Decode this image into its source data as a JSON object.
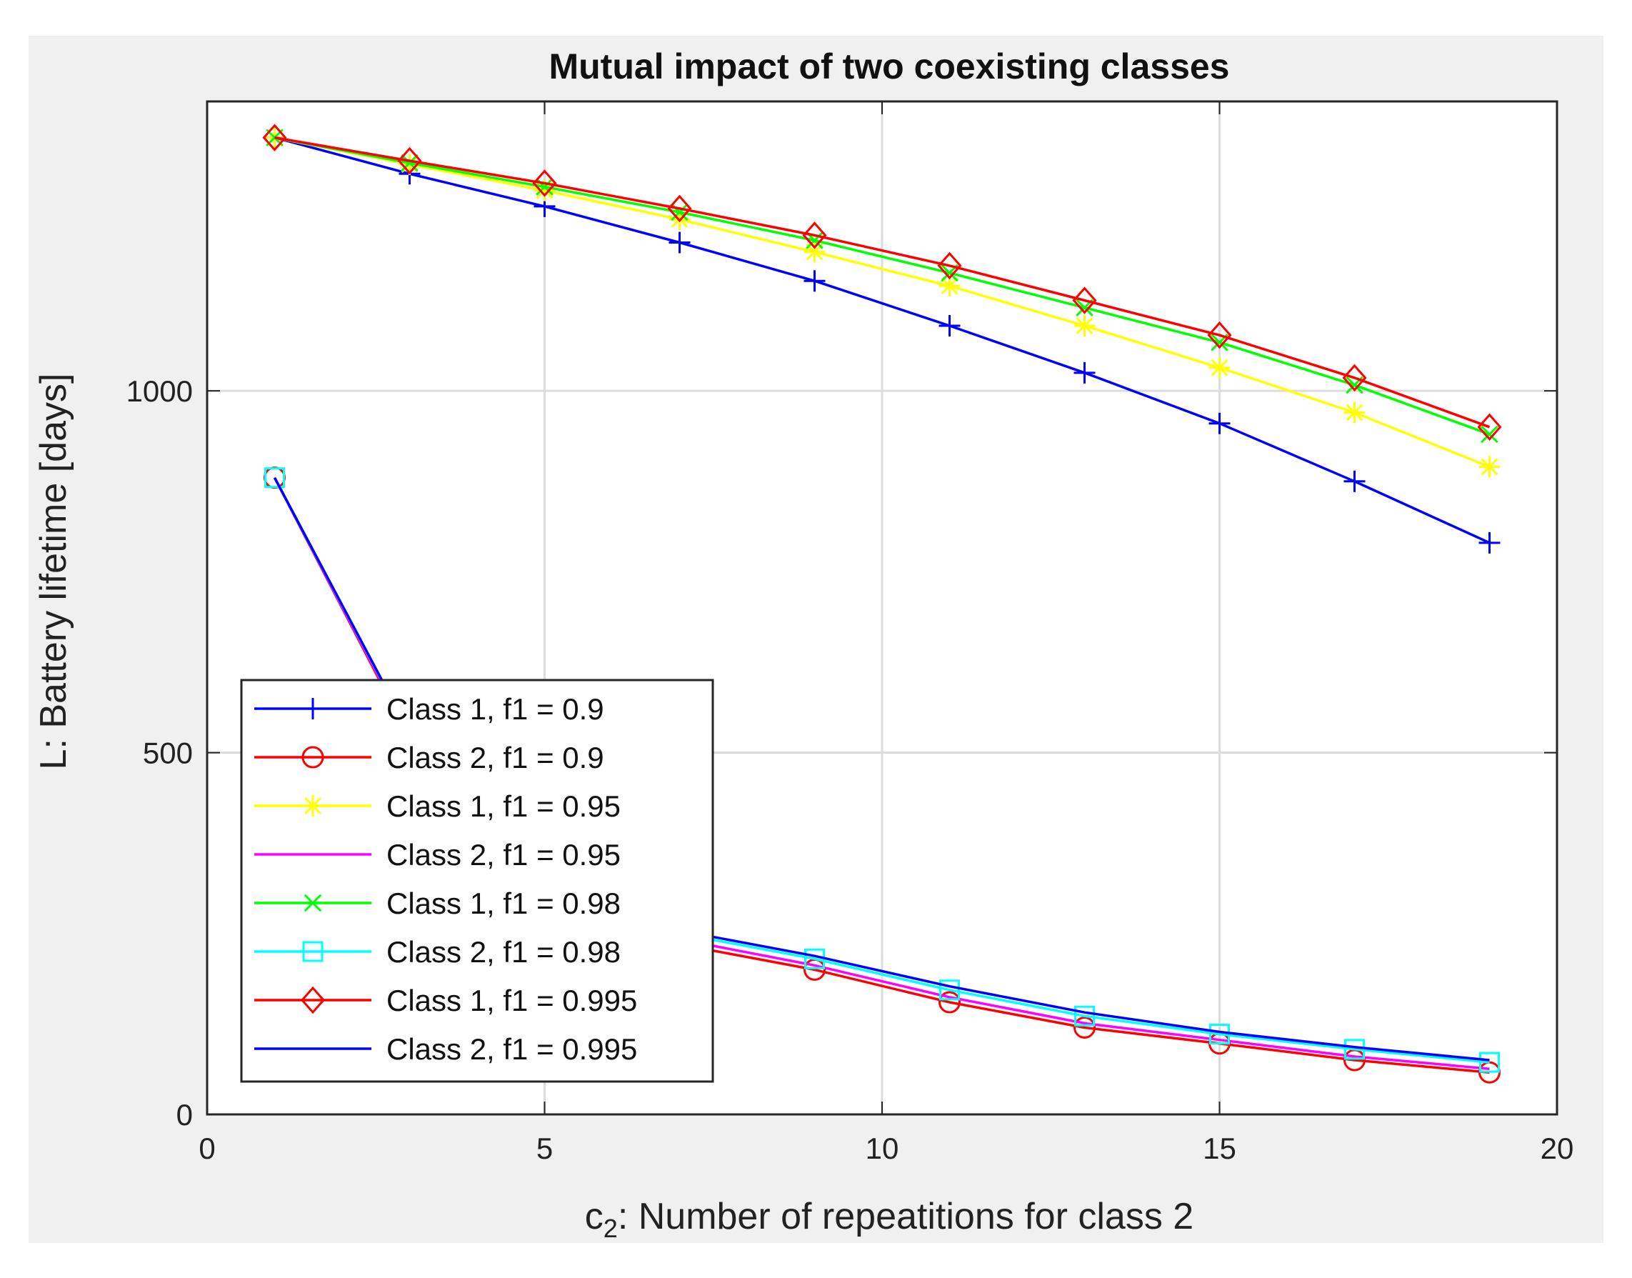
{
  "chart_data": {
    "type": "line",
    "title": "Mutual impact of two coexisting classes",
    "xlabel_main": "c",
    "xlabel_sub": "2",
    "xlabel_rest": ": Number of repeatitions for class 2",
    "ylabel": "L: Battery lifetime [days]",
    "xlim": [
      0,
      20
    ],
    "ylim": [
      0,
      1400
    ],
    "xticks": [
      0,
      5,
      10,
      15,
      20
    ],
    "yticks": [
      0,
      500,
      1000
    ],
    "grid": true,
    "legend_position": "bottom-left",
    "x": [
      1,
      3,
      5,
      7,
      9,
      11,
      13,
      15,
      17,
      19
    ],
    "series": [
      {
        "name": "Class 1, f1 = 0.9",
        "color": "#0000ff",
        "marker": "plus",
        "values": [
          1350,
          1300,
          1255,
          1205,
          1152,
          1090,
          1025,
          955,
          875,
          790
        ]
      },
      {
        "name": "Class 2, f1 = 0.9",
        "color": "#ff0000",
        "marker": "circle",
        "values": [
          880,
          520,
          330,
          235,
          200,
          155,
          120,
          98,
          75,
          58
        ]
      },
      {
        "name": "Class 1, f1 = 0.95",
        "color": "#ffff00",
        "marker": "star",
        "values": [
          1350,
          1313,
          1277,
          1237,
          1192,
          1145,
          1090,
          1032,
          970,
          895
        ]
      },
      {
        "name": "Class 2, f1 = 0.95",
        "color": "#ff00ff",
        "marker": "none",
        "values": [
          880,
          523,
          335,
          242,
          206,
          162,
          126,
          103,
          80,
          63
        ]
      },
      {
        "name": "Class 1, f1 = 0.98",
        "color": "#00ff00",
        "marker": "x",
        "values": [
          1350,
          1315,
          1282,
          1247,
          1208,
          1163,
          1115,
          1067,
          1008,
          940
        ]
      },
      {
        "name": "Class 2, f1 = 0.98",
        "color": "#00ffff",
        "marker": "square",
        "values": [
          880,
          527,
          342,
          250,
          215,
          172,
          136,
          111,
          90,
          72
        ]
      },
      {
        "name": "Class 1, f1 = 0.995",
        "color": "#ff0000",
        "marker": "diamond",
        "values": [
          1350,
          1318,
          1287,
          1252,
          1215,
          1173,
          1125,
          1077,
          1018,
          950
        ]
      },
      {
        "name": "Class 2, f1 = 0.995",
        "color": "#0000ff",
        "marker": "none",
        "values": [
          880,
          528,
          344,
          254,
          219,
          177,
          141,
          114,
          93,
          75
        ]
      }
    ]
  }
}
